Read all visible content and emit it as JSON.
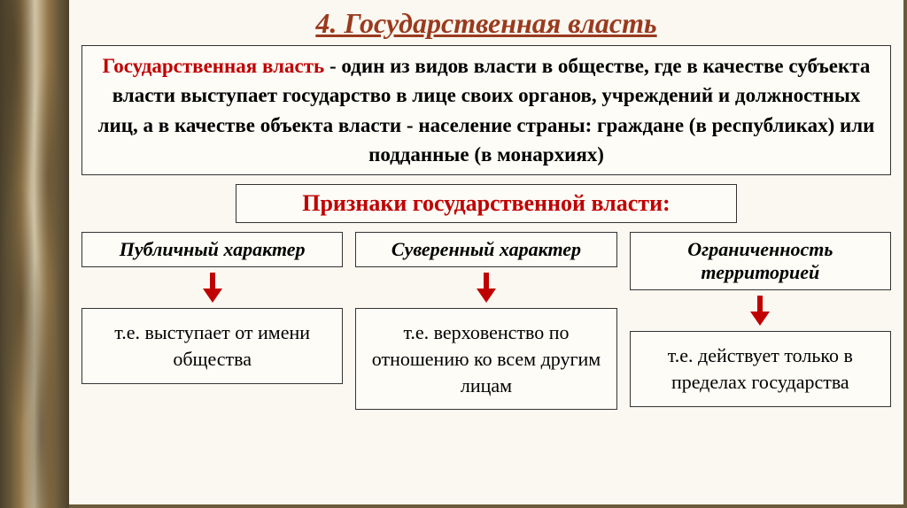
{
  "title": {
    "text": "4. Государственная власть",
    "color": "#9a3a1e",
    "fontsize": 32
  },
  "definition": {
    "term": "Государственная власть",
    "text": " - один из видов власти в обществе, где в качестве субъекта власти выступает государство в лице своих органов, учреждений и должностных лиц, а в качестве объекта власти - население страны: граждане (в республиках) или подданные (в монархиях)",
    "fontsize": 23,
    "term_color": "#c00000",
    "text_color": "#000000"
  },
  "features_header": {
    "text": "Признаки государственной власти:",
    "fontsize": 26,
    "color": "#c00000"
  },
  "features": [
    {
      "name": "Публичный характер",
      "desc": "т.е. выступает от имени общества"
    },
    {
      "name": "Суверенный характер",
      "desc": "т.е. верховенство по отношению ко всем другим лицам"
    },
    {
      "name": "Ограниченность территорией",
      "desc": "т.е. действует только в пределах государства"
    }
  ],
  "feature_name_fontsize": 22,
  "feature_desc_fontsize": 22,
  "arrow": {
    "color": "#c00000",
    "width": 22,
    "height": 34
  },
  "box": {
    "border_color": "#333333",
    "background": "#fdfcf6"
  },
  "page_background": "#faf8f0",
  "decorative_border_palette": [
    "#3a2f1a",
    "#5a4a2a",
    "#8a6a3a",
    "#d4c8a8"
  ]
}
